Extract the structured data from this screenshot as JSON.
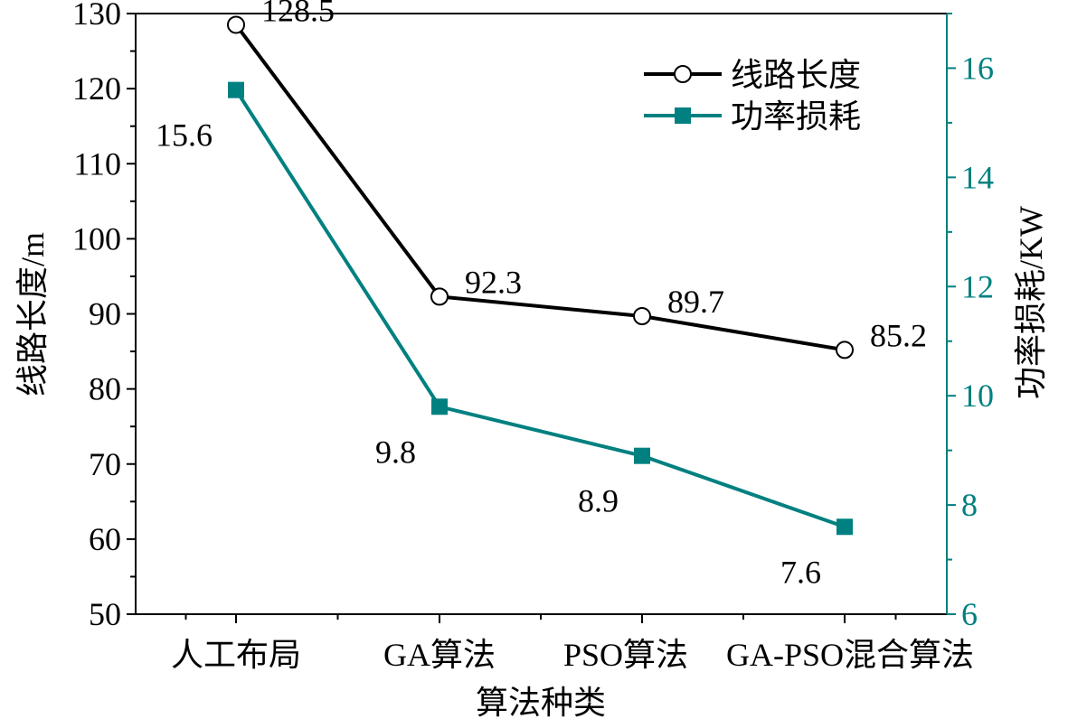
{
  "chart_data": {
    "type": "line",
    "categories": [
      "人工布局",
      "GA算法",
      "PSO算法",
      "GA-PSO混合算法"
    ],
    "xlabel": "算法种类",
    "ylabel_left": "线路长度/m",
    "ylabel_right": "功率损耗/KW",
    "ylim_left": [
      50,
      130
    ],
    "yticks_left": [
      50,
      60,
      70,
      80,
      90,
      100,
      110,
      120,
      130
    ],
    "ylim_right": [
      6,
      17
    ],
    "yticks_right": [
      6,
      8,
      10,
      12,
      14,
      16
    ],
    "grid": false,
    "legend_position": "top-right",
    "series": [
      {
        "name": "线路长度",
        "axis": "left",
        "color": "#000000",
        "marker": "open-circle",
        "values": [
          128.5,
          92.3,
          89.7,
          85.2
        ],
        "data_labels": [
          "128.5",
          "92.3",
          "89.7",
          "85.2"
        ]
      },
      {
        "name": "功率损耗",
        "axis": "right",
        "color": "#008080",
        "marker": "filled-square",
        "values": [
          15.6,
          9.8,
          8.9,
          7.6
        ],
        "data_labels": [
          "15.6",
          "9.8",
          "8.9",
          "7.6"
        ]
      }
    ],
    "colors": {
      "right_axis": "#008080",
      "left_axis": "#000000"
    }
  }
}
